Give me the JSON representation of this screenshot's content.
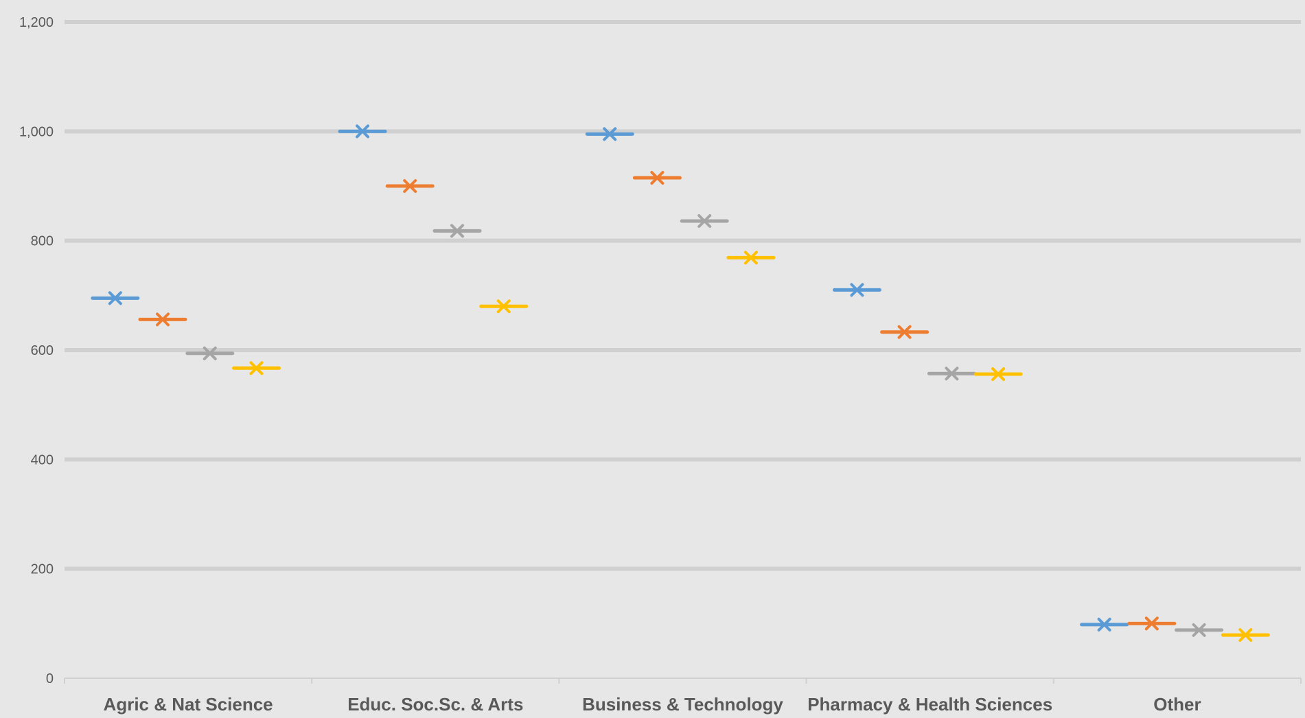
{
  "chart_data": {
    "type": "scatter",
    "categories": [
      "Agric & Nat Science",
      "Educ. Soc.Sc. & Arts",
      "Business & Technology",
      "Pharmacy & Health Sciences",
      "Other"
    ],
    "series": [
      {
        "color": "#5b9bd5",
        "values": [
          695,
          1000,
          995,
          710,
          98
        ]
      },
      {
        "color": "#ed7d31",
        "values": [
          656,
          900,
          915,
          633,
          100
        ]
      },
      {
        "color": "#a5a5a5",
        "values": [
          594,
          818,
          836,
          557,
          88
        ]
      },
      {
        "color": "#ffc000",
        "values": [
          567,
          680,
          769,
          556,
          79
        ]
      }
    ],
    "yticks": [
      "0",
      "200",
      "400",
      "600",
      "800",
      "1,000",
      "1,200"
    ],
    "ylim": [
      0,
      1200
    ],
    "grid": true,
    "legend": "none",
    "marker": "x-with-dash",
    "background": "#e7e7e7",
    "gridline_color": "#d0d0d0",
    "text_color": "#595959"
  }
}
